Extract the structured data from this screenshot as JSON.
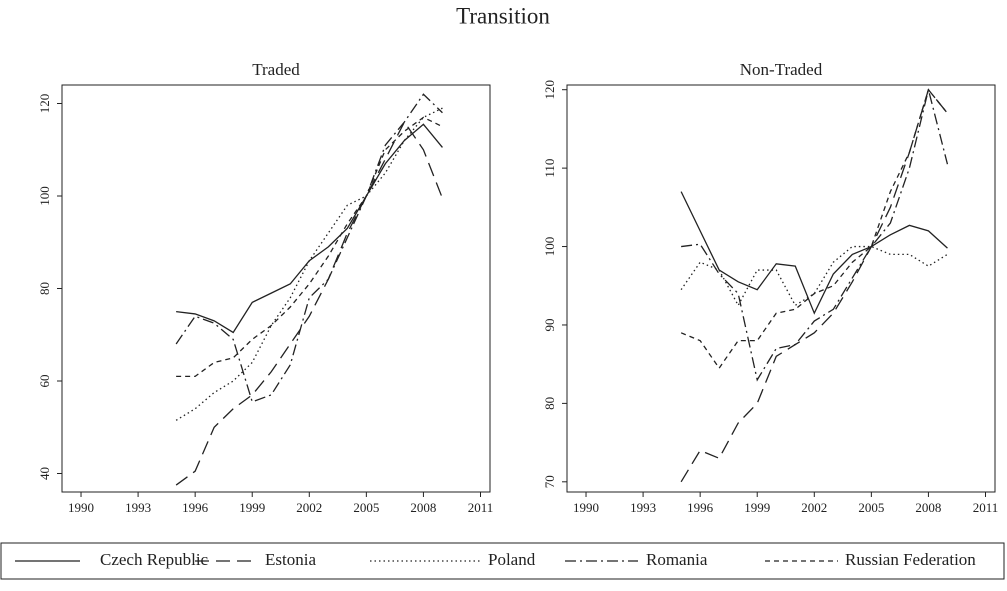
{
  "title": "Transition",
  "chart_data": [
    {
      "type": "line",
      "title": "Traded",
      "x": [
        1995,
        1996,
        1997,
        1998,
        1999,
        2000,
        2001,
        2002,
        2003,
        2004,
        2005,
        2006,
        2007,
        2008,
        2009
      ],
      "xlim": [
        1989,
        2011.5
      ],
      "xticks": [
        1990,
        1993,
        1996,
        1999,
        2002,
        2005,
        2008,
        2011
      ],
      "ylim": [
        36,
        124
      ],
      "yticks": [
        40,
        60,
        80,
        100,
        120
      ],
      "grid": false,
      "series": [
        {
          "name": "Czech Republic",
          "color": "#222222",
          "dash": "solid",
          "values": [
            75,
            74.5,
            73,
            70.5,
            77,
            79,
            81,
            86,
            89,
            93,
            100,
            107,
            112,
            115.5,
            110.5
          ]
        },
        {
          "name": "Estonia",
          "color": "#222222",
          "dash": "longdash",
          "values": [
            37.5,
            40.5,
            50,
            54,
            57,
            62,
            68,
            74,
            82,
            92,
            100,
            108,
            116,
            110,
            99.5
          ]
        },
        {
          "name": "Poland",
          "color": "#222222",
          "dash": "dot",
          "values": [
            51.5,
            54,
            57.5,
            60,
            64,
            72,
            78,
            86,
            92,
            98,
            100,
            105,
            112,
            117,
            119
          ]
        },
        {
          "name": "Romania",
          "color": "#222222",
          "dash": "dashdot",
          "values": [
            68,
            74,
            72.5,
            69,
            55.5,
            57,
            63.5,
            78,
            82,
            91,
            100,
            111,
            116,
            122,
            118
          ]
        },
        {
          "name": "Russian Federation",
          "color": "#222222",
          "dash": "shortdash",
          "values": [
            61,
            61,
            64,
            65,
            69,
            72,
            76,
            81,
            87,
            94,
            100,
            110,
            114,
            117,
            115
          ]
        }
      ]
    },
    {
      "type": "line",
      "title": "Non-Traded",
      "x": [
        1995,
        1996,
        1997,
        1998,
        1999,
        2000,
        2001,
        2002,
        2003,
        2004,
        2005,
        2006,
        2007,
        2008,
        2009
      ],
      "xlim": [
        1989,
        2011.5
      ],
      "xticks": [
        1990,
        1993,
        1996,
        1999,
        2002,
        2005,
        2008,
        2011
      ],
      "ylim": [
        68.7,
        120.6
      ],
      "yticks": [
        70,
        80,
        90,
        100,
        110,
        120
      ],
      "grid": false,
      "series": [
        {
          "color": "#222222",
          "dash": "solid",
          "values": [
            107,
            102,
            97,
            95.5,
            94.5,
            97.8,
            97.5,
            91.5,
            96.5,
            99,
            100,
            101.5,
            102.7,
            102,
            99.8
          ]
        },
        {
          "color": "#222222",
          "dash": "longdash",
          "values": [
            70,
            74,
            73,
            77.5,
            80,
            86,
            87.5,
            89,
            91.5,
            95.5,
            100,
            105,
            112,
            120,
            117
          ]
        },
        {
          "color": "#222222",
          "dash": "dot",
          "values": [
            94.5,
            98,
            97,
            92.5,
            97,
            97,
            92.5,
            94,
            98,
            100,
            100,
            99,
            99,
            97.5,
            99
          ]
        },
        {
          "color": "#222222",
          "dash": "dashdot",
          "values": [
            100,
            100.3,
            96.5,
            94,
            83,
            87,
            87.5,
            90.5,
            92,
            96,
            100,
            103,
            110,
            120,
            110.5
          ]
        },
        {
          "color": "#222222",
          "dash": "shortdash",
          "values": [
            89,
            88,
            84.5,
            88,
            88,
            91.5,
            92,
            94,
            95,
            98,
            100,
            107,
            112,
            120,
            117
          ]
        }
      ]
    }
  ]
}
